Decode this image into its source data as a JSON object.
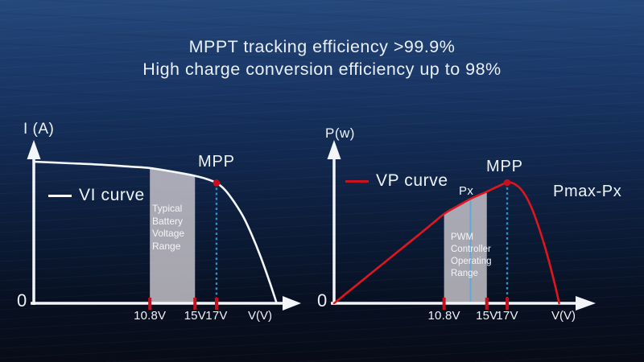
{
  "title": {
    "line1": "MPPT tracking efficiency >99.9%",
    "line2": "High charge conversion efficiency up to 98%"
  },
  "colors": {
    "background_top": "#26497c",
    "background_bottom": "#070c17",
    "axis_white": "#f2f5fa",
    "text_white": "#edf2f9",
    "curve_white": "#f4f6fa",
    "curve_red": "#e0161f",
    "marker_red": "#c90f1c",
    "dotted_blue": "#2d92cc",
    "px_line_blue": "#63a9d6",
    "band_gray": "rgba(208,204,210,0.8)"
  },
  "chart_data": [
    {
      "id": "vi-chart",
      "type": "line",
      "title": "VI curve",
      "ylabel": "I (A)",
      "xlabel": "V(V)",
      "origin_label": "0",
      "legend": {
        "label": "VI curve",
        "color": "#f4f6fa"
      },
      "x_range": [
        0,
        23
      ],
      "y_range": [
        0,
        1.12
      ],
      "grid": false,
      "series": [
        {
          "name": "VI curve",
          "color": "#f4f6fa",
          "points": [
            [
              0,
              1.0
            ],
            [
              3,
              0.99
            ],
            [
              6,
              0.98
            ],
            [
              9,
              0.965
            ],
            [
              10.8,
              0.955
            ],
            [
              12.5,
              0.935
            ],
            [
              14,
              0.915
            ],
            [
              15,
              0.9
            ],
            [
              16,
              0.88
            ],
            [
              17,
              0.85
            ],
            [
              17.8,
              0.8
            ],
            [
              18.6,
              0.72
            ],
            [
              19.5,
              0.61
            ],
            [
              20.3,
              0.48
            ],
            [
              21.1,
              0.33
            ],
            [
              21.9,
              0.16
            ],
            [
              22.6,
              0.0
            ]
          ]
        }
      ],
      "band": {
        "x_from": 10.8,
        "x_to": 15,
        "color": "rgba(208,204,210,0.8)",
        "label_lines": [
          "Typical",
          "Battery",
          "Voltage",
          "Range"
        ]
      },
      "mpp": {
        "label": "MPP",
        "x": 17,
        "y": 0.85
      },
      "ticks": [
        {
          "x": 10.8,
          "label": "10.8V"
        },
        {
          "x": 15,
          "label": "15V"
        },
        {
          "x": 17,
          "label": "17V"
        }
      ]
    },
    {
      "id": "vp-chart",
      "type": "line",
      "title": "VP curve",
      "ylabel": "P(w)",
      "xlabel": "V(V)",
      "origin_label": "0",
      "legend": {
        "label": "VP curve",
        "color": "#c6151f"
      },
      "x_range": [
        0,
        23
      ],
      "y_range": [
        0,
        1.3
      ],
      "grid": false,
      "series": [
        {
          "name": "VP curve",
          "color": "#e0161f",
          "points": [
            [
              0,
              0
            ],
            [
              3,
              0.205
            ],
            [
              6,
              0.41
            ],
            [
              9,
              0.615
            ],
            [
              10.8,
              0.74
            ],
            [
              12,
              0.8
            ],
            [
              13.4,
              0.865
            ],
            [
              15,
              0.925
            ],
            [
              16,
              0.965
            ],
            [
              17,
              1.0
            ],
            [
              17.7,
              0.99
            ],
            [
              18.5,
              0.93
            ],
            [
              19.3,
              0.81
            ],
            [
              20.1,
              0.63
            ],
            [
              20.9,
              0.41
            ],
            [
              21.7,
              0.15
            ],
            [
              22.1,
              0.0
            ]
          ]
        }
      ],
      "band": {
        "x_from": 10.8,
        "x_to": 15,
        "color": "rgba(208,204,210,0.8)",
        "label_lines": [
          "PWM",
          "Controller",
          "Operating",
          "Range"
        ]
      },
      "px_marker": {
        "label": "Px",
        "x": 13.4,
        "color": "#63a9d6"
      },
      "annotation": "Pmax-Px",
      "mpp": {
        "label": "MPP",
        "x": 17,
        "y": 1.0
      },
      "ticks": [
        {
          "x": 10.8,
          "label": "10.8V"
        },
        {
          "x": 15,
          "label": "15V"
        },
        {
          "x": 17,
          "label": "17V"
        }
      ]
    }
  ]
}
